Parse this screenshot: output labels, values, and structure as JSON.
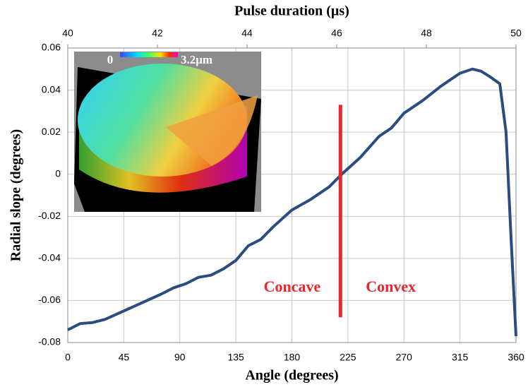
{
  "chart_data": {
    "type": "line",
    "xlabel": "Angle (degrees)",
    "ylabel": "Radial slope (degrees)",
    "x2label": "Pulse duration (µs)",
    "xlim": [
      0,
      360
    ],
    "xticks": [
      0,
      45,
      90,
      135,
      180,
      225,
      270,
      315,
      360
    ],
    "x2lim": [
      40,
      50
    ],
    "x2ticks": [
      40,
      42,
      44,
      46,
      48,
      50
    ],
    "ylim": [
      -0.08,
      0.06
    ],
    "yticks": [
      0.06,
      0.04,
      0.02,
      0,
      -0.02,
      -0.04,
      -0.06,
      -0.08
    ],
    "grid": true,
    "series": [
      {
        "color": "#2b4c7e",
        "x": [
          0,
          10,
          20,
          30,
          45,
          60,
          75,
          85,
          95,
          105,
          115,
          125,
          135,
          145,
          155,
          165,
          180,
          195,
          210,
          220,
          235,
          250,
          260,
          270,
          285,
          300,
          315,
          325,
          332,
          340,
          347,
          352,
          356,
          360
        ],
        "values": [
          -0.074,
          -0.071,
          -0.0705,
          -0.069,
          -0.065,
          -0.061,
          -0.057,
          -0.054,
          -0.052,
          -0.049,
          -0.048,
          -0.045,
          -0.041,
          -0.034,
          -0.031,
          -0.025,
          -0.017,
          -0.012,
          -0.006,
          0.0,
          0.008,
          0.018,
          0.022,
          0.029,
          0.035,
          0.042,
          0.048,
          0.05,
          0.049,
          0.046,
          0.043,
          0.02,
          -0.03,
          -0.077
        ]
      }
    ],
    "divider": {
      "x": 219,
      "y": [
        0.033,
        -0.068
      ],
      "color": "#e8262b"
    },
    "annotations": [
      "Concave",
      "Convex"
    ],
    "inset_labels": [
      "0",
      "3.2μm"
    ]
  }
}
